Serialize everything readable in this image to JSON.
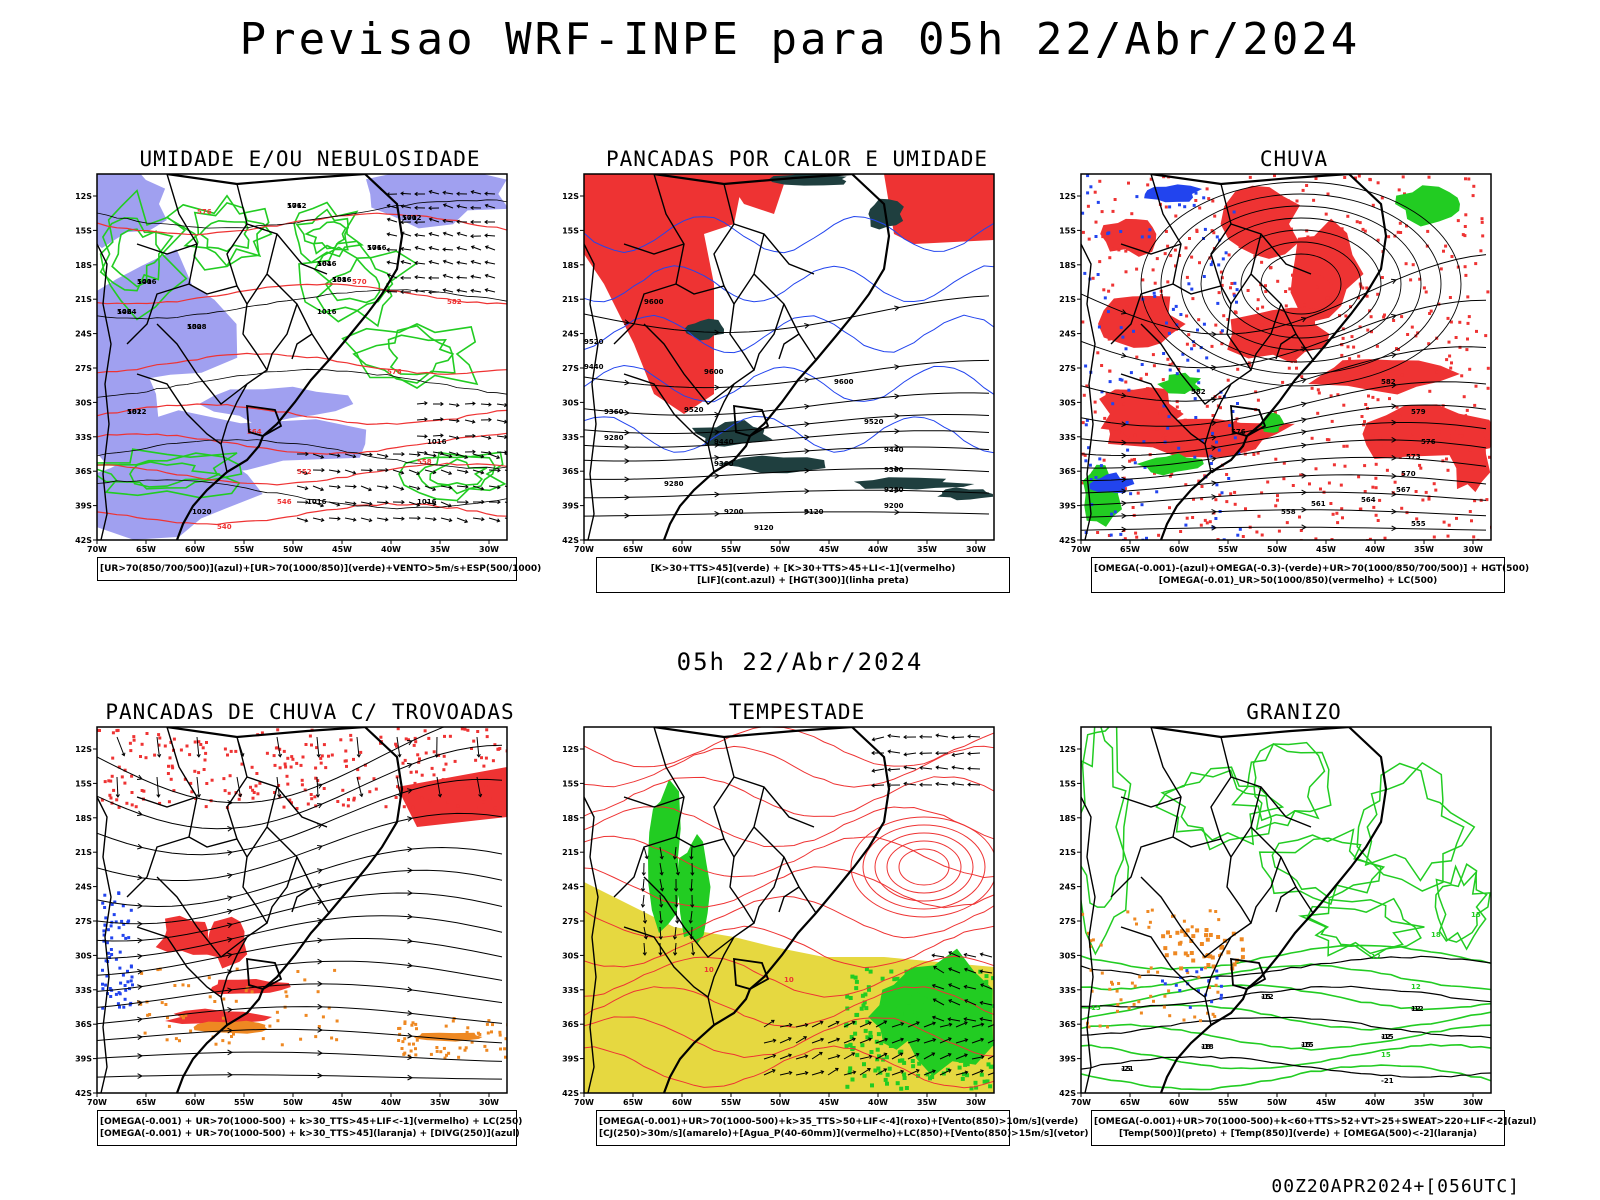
{
  "title": "Previsao WRF-INPE  para 05h 22/Abr/2024",
  "mid_time": "05h 22/Abr/2024",
  "footer": "00Z20APR2024+[056UTC]",
  "lat_ticks": [
    "12S",
    "15S",
    "18S",
    "21S",
    "24S",
    "27S",
    "30S",
    "33S",
    "36S",
    "39S",
    "42S"
  ],
  "lon_ticks": [
    "70W",
    "65W",
    "60W",
    "55W",
    "50W",
    "45W",
    "40W",
    "35W",
    "30W"
  ],
  "colors": {
    "coast": "#000000",
    "humidity_blue": "#a0a0f0",
    "green": "#22cc22",
    "red": "#ee3333",
    "dark_teal": "#1f3f3f",
    "blue": "#2244ee",
    "orange": "#ee8822",
    "yellow": "#e6d840"
  },
  "panels": [
    {
      "id": "umidade",
      "title": "UMIDADE E/OU NEBULOSIDADE",
      "legend": [
        "[UR>70(850/700/500)](azul)+[UR>70(1000/850)](verde)+VENTO>5m/s+ESP(500/1000)"
      ],
      "labels": [
        "1012",
        "1012",
        "1016",
        "1016",
        "1016",
        "1008",
        "1024",
        "1016",
        "1012",
        "1016",
        "1016",
        "1020",
        "1016",
        "1016",
        "576",
        "570",
        "576",
        "564",
        "558",
        "552",
        "546",
        "540",
        "582"
      ]
    },
    {
      "id": "pancadas-calor",
      "title": "PANCADAS POR CALOR E UMIDADE",
      "legend": [
        "[K>30+TTS>45](verde) + [K>30+TTS>45+LI<-1](vermelho)",
        "[LIF](cont.azul) + [HGT(300)](linha preta)"
      ],
      "labels": [
        "9600",
        "9520",
        "9440",
        "9600",
        "9520",
        "9440",
        "9360",
        "9280",
        "9200",
        "9120",
        "9600",
        "9520",
        "9440",
        "9360",
        "9280",
        "9200",
        "9120",
        "9360",
        "9280"
      ]
    },
    {
      "id": "chuva",
      "title": "CHUVA",
      "legend": [
        "[OMEGA(-0.001)-(azul)+OMEGA(-0.3)-(verde)+UR>70(1000/850/700/500)] + HGT(500)",
        "[OMEGA(-0.01)_UR>50(1000/850)(vermelho) + LC(500)"
      ],
      "labels": [
        "582",
        "576",
        "582",
        "579",
        "576",
        "573",
        "570",
        "567",
        "564",
        "561",
        "558",
        "555"
      ]
    },
    {
      "id": "trovoadas",
      "title": "PANCADAS DE CHUVA C/ TROVOADAS",
      "legend": [
        "[OMEGA(-0.001) + UR>70(1000-500) + k>30_TTS>45+LIF<-1](vermelho) + LC(250)",
        "[OMEGA(-0.001) + UR>70(1000-500) + k>30_TTS>45](laranja) + [DIVG(250)](azul)"
      ],
      "labels": []
    },
    {
      "id": "tempestade",
      "title": "TEMPESTADE",
      "legend": [
        "[OMEGA(-0.001)+UR>70(1000-500)+k>35_TTS>50+LIF<-4](roxo)+[Vento(850)>10m/s](verde)",
        "[CJ(250)>30m/s](amarelo)+[Agua_P(40-60mm)](vermelho)+LC(850)+[Vento(850)>15m/s](vetor)"
      ],
      "labels": [
        "10",
        "10"
      ]
    },
    {
      "id": "granizo",
      "title": "GRANIZO",
      "legend": [
        "[OMEGA(-0.001)+UR>70(1000-500)+k<60+TTS>52+VT>25+SWEAT>220+LIF<-2](azul)",
        "[Temp(500)](preto) + [Temp(850)](verde) + [OMEGA(500)<-2](laranja)"
      ],
      "labels": [
        "-12",
        "-12",
        "-15",
        "-15",
        "-18",
        "-21",
        "-21",
        "15",
        "12",
        "12",
        "15",
        "18",
        "15"
      ]
    }
  ]
}
